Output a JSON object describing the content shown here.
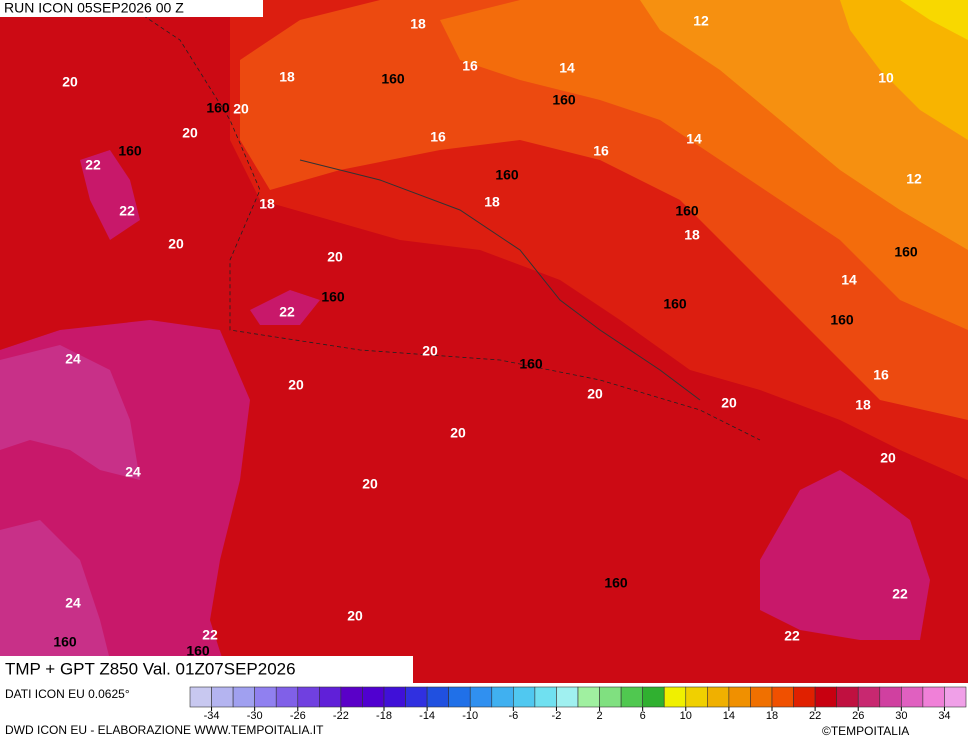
{
  "header": {
    "run": "RUN ICON 05SEP2026 00 Z"
  },
  "contour_labels": [
    18,
    12,
    20,
    18,
    160,
    16,
    14,
    10,
    160,
    20,
    160,
    20,
    16,
    14,
    160,
    16,
    22,
    160,
    12,
    18,
    18,
    22,
    160,
    18,
    20,
    160,
    20,
    14,
    160,
    160,
    22,
    160,
    20,
    24,
    160,
    16,
    20,
    20,
    20,
    18,
    20,
    20,
    24,
    20,
    160,
    24,
    22,
    20,
    22,
    22,
    160,
    160
  ],
  "footer": {
    "field": "TMP + GPT Z850 Val. 01Z07SEP2026",
    "source": "DATI ICON EU 0.0625°",
    "credit": "DWD ICON EU - ELABORAZIONE WWW.TEMPOITALIA.IT",
    "copyright": "©TEMPOITALIA"
  },
  "scale": {
    "lim": [
      -36,
      36
    ],
    "ticks": [
      -34,
      -30,
      -26,
      -22,
      -18,
      -14,
      -10,
      -6,
      -2,
      2,
      6,
      10,
      14,
      18,
      22,
      26,
      30,
      34
    ],
    "colors": [
      "#c8c8f0",
      "#b4b4f0",
      "#a0a0f0",
      "#9080f0",
      "#8060e8",
      "#7040e0",
      "#6020d8",
      "#5a00c8",
      "#5000d0",
      "#4010d8",
      "#3030e0",
      "#2050e0",
      "#2070e8",
      "#3090f0",
      "#40b0f0",
      "#50c8f0",
      "#70e0f0",
      "#a0f0f0",
      "#a0f0a0",
      "#80e080",
      "#50c850",
      "#30b030",
      "#f0f000",
      "#f0d000",
      "#f0b000",
      "#f09000",
      "#f07000",
      "#f05000",
      "#e02000",
      "#c80010",
      "#c01040",
      "#c82870",
      "#d040a0",
      "#e060c0",
      "#f080d8",
      "#f0a0e8"
    ]
  }
}
